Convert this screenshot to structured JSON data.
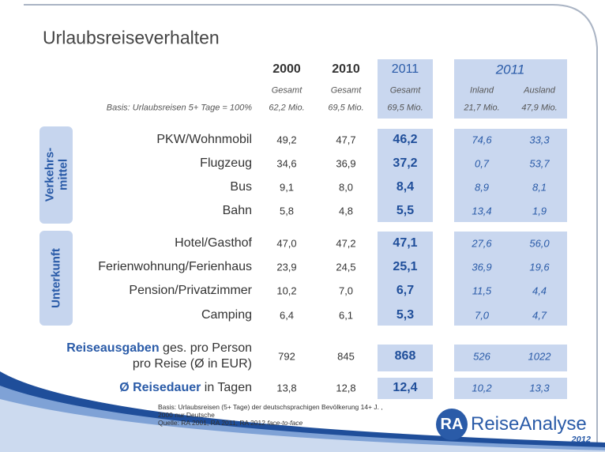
{
  "title": "Urlaubsreiseverhalten",
  "basis_label": "Basis: Urlaubsreisen 5+ Tage = 100%",
  "columns": [
    {
      "year": "2000",
      "scope": "Gesamt",
      "base": "62,2 Mio."
    },
    {
      "year": "2010",
      "scope": "Gesamt",
      "base": "69,5 Mio."
    },
    {
      "year": "2011",
      "scope": "Gesamt",
      "base": "69,5 Mio."
    }
  ],
  "split_header": "2011",
  "split_columns": [
    {
      "scope": "Inland",
      "base": "21,7 Mio."
    },
    {
      "scope": "Ausland",
      "base": "47,9 Mio."
    }
  ],
  "groups": [
    {
      "label": [
        "Verkehrs-",
        "mittel"
      ],
      "rows": [
        {
          "label": "PKW/Wohnmobil",
          "values": [
            "49,2",
            "47,7",
            "46,2",
            "74,6",
            "33,3"
          ]
        },
        {
          "label": "Flugzeug",
          "values": [
            "34,6",
            "36,9",
            "37,2",
            "0,7",
            "53,7"
          ]
        },
        {
          "label": "Bus",
          "values": [
            "9,1",
            "8,0",
            "8,4",
            "8,9",
            "8,1"
          ]
        },
        {
          "label": "Bahn",
          "values": [
            "5,8",
            "4,8",
            "5,5",
            "13,4",
            "1,9"
          ]
        }
      ]
    },
    {
      "label": [
        "Unterkunft"
      ],
      "rows": [
        {
          "label": "Hotel/Gasthof",
          "values": [
            "47,0",
            "47,2",
            "47,1",
            "27,6",
            "56,0"
          ]
        },
        {
          "label": "Ferienwohnung/Ferienhaus",
          "values": [
            "23,9",
            "24,5",
            "25,1",
            "36,9",
            "19,6"
          ]
        },
        {
          "label": "Pension/Privatzimmer",
          "values": [
            "10,2",
            "7,0",
            "6,7",
            "11,5",
            "4,4"
          ]
        },
        {
          "label": "Camping",
          "values": [
            "6,4",
            "6,1",
            "5,3",
            "7,0",
            "4,7"
          ]
        }
      ]
    }
  ],
  "extra_rows": [
    {
      "label_bold": "Reiseausgaben",
      "label": [
        "ges. pro Person",
        "pro Reise (Ø in EUR)"
      ],
      "values": [
        "792",
        "845",
        "868",
        "526",
        "1022"
      ]
    },
    {
      "label_bold": "Ø Reisedauer",
      "label": [
        "in Tagen"
      ],
      "values": [
        "13,8",
        "12,8",
        "12,4",
        "10,2",
        "13,3"
      ]
    }
  ],
  "footnote": {
    "lines": [
      "Basis: Urlaubsreisen (5+ Tage) der deutschsprachigen Bevölkerung 14+ J. ,",
      "2000 nur Deutsche"
    ],
    "source": "Quelle: RA 2001, RA 2011, RA 2012",
    "source_italic": "face-to-face"
  },
  "logo": {
    "mark": "RA",
    "name": "ReiseAnalyse",
    "year": "2012"
  }
}
